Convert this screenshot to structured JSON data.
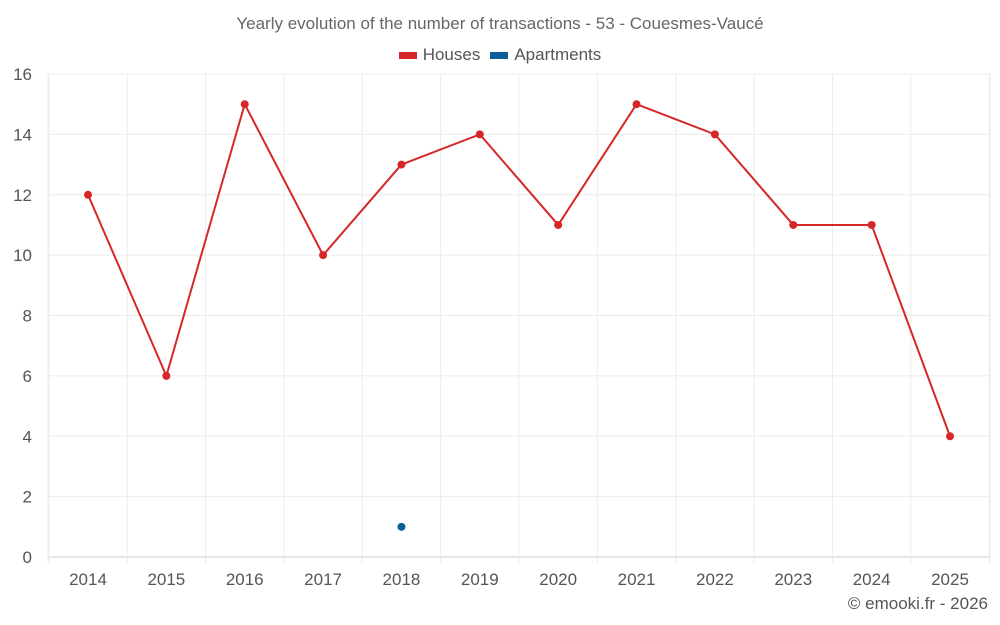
{
  "chart_data": {
    "type": "line",
    "title": "Yearly evolution of the number of transactions - 53 - Couesmes-Vaucé",
    "categories": [
      "2014",
      "2015",
      "2016",
      "2017",
      "2018",
      "2019",
      "2020",
      "2021",
      "2022",
      "2023",
      "2024",
      "2025"
    ],
    "series": [
      {
        "name": "Houses",
        "color": "#d62728",
        "values": [
          12,
          6,
          15,
          10,
          13,
          14,
          11,
          15,
          14,
          11,
          11,
          4
        ]
      },
      {
        "name": "Apartments",
        "color": "#0a5f96",
        "values": [
          null,
          null,
          null,
          null,
          1,
          null,
          null,
          null,
          null,
          null,
          null,
          null
        ]
      }
    ],
    "ylim": [
      0,
      16
    ],
    "yticks": [
      0,
      2,
      4,
      6,
      8,
      10,
      12,
      14,
      16
    ],
    "xlabel": "",
    "ylabel": "",
    "grid": true,
    "legend_position": "top-center"
  },
  "credit": "© emooki.fr - 2026"
}
